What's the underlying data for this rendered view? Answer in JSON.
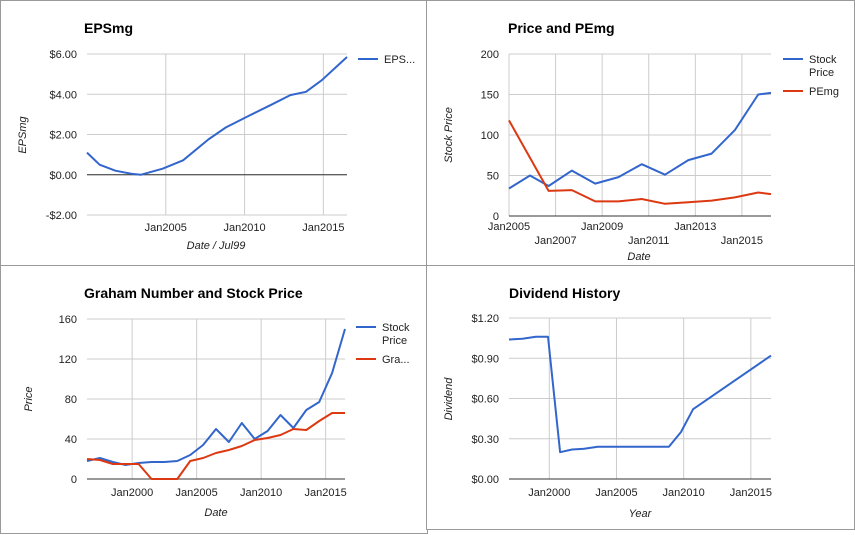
{
  "chart_data": [
    {
      "type": "line",
      "title": "EPSmg",
      "xlabel": "Date / Jul99",
      "ylabel": "EPSmg",
      "x_domain": [
        2000.0,
        2016.5
      ],
      "x_ticks": [
        {
          "value": 2005,
          "label": "Jan2005"
        },
        {
          "value": 2010,
          "label": "Jan2010"
        },
        {
          "value": 2015,
          "label": "Jan2015"
        }
      ],
      "y_range": [
        -2,
        6
      ],
      "y_ticks": [
        {
          "value": 6,
          "label": "$6.00"
        },
        {
          "value": 4,
          "label": "$4.00"
        },
        {
          "value": 2,
          "label": "$2.00"
        },
        {
          "value": 0,
          "label": "$0.00"
        },
        {
          "value": -2,
          "label": "-$2.00"
        }
      ],
      "baseline": 0,
      "legend_position": "right",
      "series": [
        {
          "name": "EPS...",
          "color": "#3366cc",
          "x": [
            2000.0,
            2000.8,
            2001.8,
            2002.8,
            2003.4,
            2004.8,
            2006.1,
            2007.7,
            2008.8,
            2010.2,
            2011.7,
            2012.9,
            2013.9,
            2014.9,
            2015.8,
            2016.5
          ],
          "y": [
            1.1,
            0.5,
            0.2,
            0.05,
            0.0,
            0.3,
            0.72,
            1.75,
            2.35,
            2.9,
            3.48,
            3.96,
            4.12,
            4.7,
            5.35,
            5.85
          ]
        }
      ]
    },
    {
      "type": "line",
      "title": "Price and PEmg",
      "xlabel": "Date",
      "ylabel": "Stock Price",
      "x_domain": [
        2005.0,
        2016.25
      ],
      "x_ticks": [
        {
          "value": 2005,
          "label": "Jan2005",
          "row": 1
        },
        {
          "value": 2007,
          "label": "Jan2007",
          "row": 2
        },
        {
          "value": 2009,
          "label": "Jan2009",
          "row": 1
        },
        {
          "value": 2011,
          "label": "Jan2011",
          "row": 2
        },
        {
          "value": 2013,
          "label": "Jan2013",
          "row": 1
        },
        {
          "value": 2015,
          "label": "Jan2015",
          "row": 2
        }
      ],
      "y_range": [
        0,
        200
      ],
      "y_ticks": [
        {
          "value": 0,
          "label": "0"
        },
        {
          "value": 50,
          "label": "50"
        },
        {
          "value": 100,
          "label": "100"
        },
        {
          "value": 150,
          "label": "150"
        },
        {
          "value": 200,
          "label": "200"
        }
      ],
      "legend_position": "right",
      "series": [
        {
          "name": "Stock Price",
          "color": "#3366cc",
          "x": [
            2005.0,
            2005.9,
            2006.7,
            2007.7,
            2008.7,
            2009.7,
            2010.7,
            2011.7,
            2012.7,
            2013.7,
            2014.7,
            2015.7,
            2016.25
          ],
          "y": [
            34,
            50,
            37,
            56,
            40,
            48,
            64,
            51,
            69,
            77,
            106,
            150,
            152
          ]
        },
        {
          "name": "PEmg",
          "color": "#dc3912",
          "x": [
            2005.0,
            2006.7,
            2007.7,
            2008.7,
            2009.7,
            2010.7,
            2011.7,
            2012.7,
            2013.7,
            2014.7,
            2015.7,
            2016.25
          ],
          "y": [
            118,
            31,
            32,
            18,
            18,
            21,
            15,
            17,
            19,
            23,
            29,
            27
          ]
        }
      ]
    },
    {
      "type": "line",
      "title": "Graham Number and Stock Price",
      "xlabel": "Date",
      "ylabel": "Price",
      "x_domain": [
        1996.5,
        2016.5
      ],
      "x_ticks": [
        {
          "value": 2000,
          "label": "Jan2000"
        },
        {
          "value": 2005,
          "label": "Jan2005"
        },
        {
          "value": 2010,
          "label": "Jan2010"
        },
        {
          "value": 2015,
          "label": "Jan2015"
        }
      ],
      "y_range": [
        0,
        160
      ],
      "y_ticks": [
        {
          "value": 0,
          "label": "0"
        },
        {
          "value": 40,
          "label": "40"
        },
        {
          "value": 80,
          "label": "80"
        },
        {
          "value": 120,
          "label": "120"
        },
        {
          "value": 160,
          "label": "160"
        }
      ],
      "legend_position": "right",
      "series": [
        {
          "name": "Stock Price",
          "color": "#3366cc",
          "x": [
            1996.5,
            1997.5,
            1998.5,
            1999.5,
            2000.5,
            2001.5,
            2002.5,
            2003.5,
            2004.5,
            2005.5,
            2006.5,
            2007.5,
            2008.5,
            2009.5,
            2010.5,
            2011.5,
            2012.5,
            2013.5,
            2014.5,
            2015.5,
            2016.5
          ],
          "y": [
            18,
            21,
            17,
            14,
            16,
            17,
            17,
            18,
            24,
            34,
            50,
            37,
            56,
            40,
            48,
            64,
            51,
            69,
            77,
            106,
            150
          ]
        },
        {
          "name": "Gra...",
          "color": "#dc3912",
          "x": [
            1996.5,
            1997.5,
            1998.5,
            1999.5,
            2000.5,
            2001.5,
            2002.5,
            2003.5,
            2004.5,
            2005.5,
            2006.5,
            2007.5,
            2008.5,
            2009.5,
            2010.5,
            2011.5,
            2012.5,
            2013.5,
            2014.5,
            2015.5,
            2016.5
          ],
          "y": [
            20,
            19,
            15,
            15,
            15,
            0,
            0,
            0,
            18,
            21,
            26,
            29,
            33,
            39,
            41,
            44,
            50,
            49,
            58,
            66,
            66
          ]
        }
      ]
    },
    {
      "type": "line",
      "title": "Dividend History",
      "xlabel": "Year",
      "ylabel": "Dividend",
      "x_domain": [
        1997.0,
        2016.5
      ],
      "x_ticks": [
        {
          "value": 2000,
          "label": "Jan2000"
        },
        {
          "value": 2005,
          "label": "Jan2005"
        },
        {
          "value": 2010,
          "label": "Jan2010"
        },
        {
          "value": 2015,
          "label": "Jan2015"
        }
      ],
      "y_range": [
        0,
        1.2
      ],
      "y_ticks": [
        {
          "value": 0,
          "label": "$0.00"
        },
        {
          "value": 0.3,
          "label": "$0.30"
        },
        {
          "value": 0.6,
          "label": "$0.60"
        },
        {
          "value": 0.9,
          "label": "$0.90"
        },
        {
          "value": 1.2,
          "label": "$1.20"
        }
      ],
      "legend_position": "none",
      "series": [
        {
          "color": "#3366cc",
          "x": [
            1997.0,
            1998.0,
            1999.0,
            1999.9,
            2000.8,
            2001.7,
            2002.6,
            2003.6,
            2008.9,
            2009.8,
            2010.7,
            2016.5
          ],
          "y": [
            1.04,
            1.045,
            1.06,
            1.06,
            0.2,
            0.22,
            0.225,
            0.24,
            0.24,
            0.35,
            0.52,
            0.92
          ]
        }
      ]
    }
  ]
}
